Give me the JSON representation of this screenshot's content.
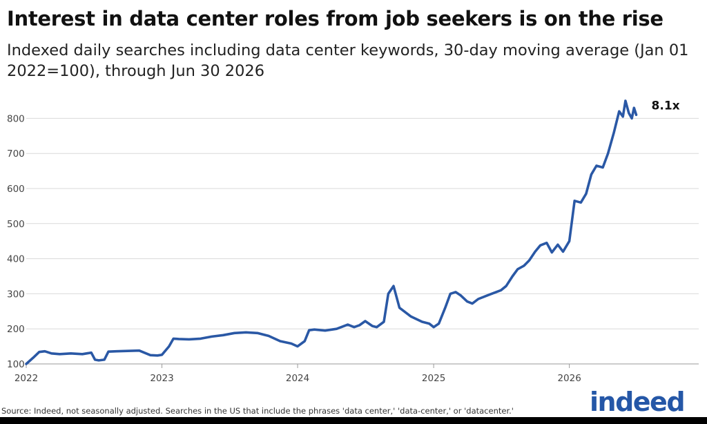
{
  "header": {
    "title": "Interest in data center roles from job seekers is on the rise",
    "subtitle": "Indexed daily searches including data center keywords, 30-day moving average (Jan 01 2022=100), through Jun 30 2026"
  },
  "footer": {
    "source": "Source: Indeed, not seasonally adjusted. Searches in the US that include the phrases 'data center,' 'data-center,' or 'datacenter.'",
    "logo": "indeed"
  },
  "colors": {
    "line": "#2a58a5",
    "grid": "#d9d9d9",
    "logo": "#2557a7"
  },
  "chart_data": {
    "type": "line",
    "title": "Interest in data center roles from job seekers is on the rise",
    "subtitle": "Indexed daily searches including data center keywords, 30-day moving average (Jan 01 2022=100), through Jun 30 2026",
    "xlabel": "",
    "ylabel": "",
    "ylim": [
      100,
      850
    ],
    "xlim": [
      "2022-01-01",
      "2026-12-15"
    ],
    "yticks": [
      100,
      200,
      300,
      400,
      500,
      600,
      700,
      800
    ],
    "xticks": [
      "2022",
      "2023",
      "2024",
      "2025",
      "2026"
    ],
    "grid": true,
    "annotation": {
      "date": "2026-06-30",
      "value": 810,
      "label": "8.1x"
    },
    "x": [
      "2022-01-01",
      "2022-01-20",
      "2022-02-05",
      "2022-02-20",
      "2022-03-10",
      "2022-04-01",
      "2022-05-01",
      "2022-06-01",
      "2022-06-25",
      "2022-07-05",
      "2022-07-15",
      "2022-07-30",
      "2022-08-10",
      "2022-09-01",
      "2022-10-01",
      "2022-11-01",
      "2022-12-01",
      "2022-12-20",
      "2023-01-01",
      "2023-01-20",
      "2023-02-01",
      "2023-02-15",
      "2023-03-15",
      "2023-04-15",
      "2023-05-15",
      "2023-06-15",
      "2023-07-15",
      "2023-08-15",
      "2023-09-15",
      "2023-10-15",
      "2023-11-15",
      "2023-12-15",
      "2024-01-01",
      "2024-01-20",
      "2024-02-01",
      "2024-02-15",
      "2024-03-15",
      "2024-04-15",
      "2024-05-15",
      "2024-06-01",
      "2024-06-15",
      "2024-07-01",
      "2024-07-20",
      "2024-08-01",
      "2024-08-20",
      "2024-09-01",
      "2024-09-15",
      "2024-10-01",
      "2024-11-01",
      "2024-12-01",
      "2024-12-20",
      "2025-01-01",
      "2025-01-15",
      "2025-02-01",
      "2025-02-15",
      "2025-03-01",
      "2025-03-15",
      "2025-04-01",
      "2025-04-15",
      "2025-05-01",
      "2025-06-01",
      "2025-07-01",
      "2025-07-15",
      "2025-08-01",
      "2025-08-15",
      "2025-09-01",
      "2025-09-15",
      "2025-10-01",
      "2025-10-15",
      "2025-11-01",
      "2025-11-15",
      "2025-12-01",
      "2025-12-15",
      "2026-01-01",
      "2026-01-15",
      "2026-02-01",
      "2026-02-15",
      "2026-03-01",
      "2026-03-15",
      "2026-04-01",
      "2026-04-15",
      "2026-05-01",
      "2026-05-15",
      "2026-05-25",
      "2026-06-01",
      "2026-06-10",
      "2026-06-18",
      "2026-06-24",
      "2026-06-30"
    ],
    "series": [
      {
        "values": [
          100,
          118,
          134,
          136,
          130,
          128,
          130,
          128,
          132,
          112,
          110,
          112,
          135,
          136,
          137,
          138,
          125,
          124,
          126,
          150,
          172,
          171,
          170,
          172,
          178,
          182,
          188,
          190,
          188,
          180,
          165,
          158,
          150,
          165,
          196,
          198,
          195,
          200,
          212,
          205,
          210,
          222,
          208,
          205,
          220,
          300,
          322,
          260,
          235,
          220,
          215,
          205,
          215,
          260,
          300,
          305,
          295,
          278,
          272,
          285,
          298,
          310,
          322,
          350,
          370,
          380,
          395,
          420,
          438,
          445,
          418,
          440,
          420,
          450,
          565,
          560,
          585,
          640,
          665,
          660,
          700,
          760,
          820,
          805,
          850,
          815,
          800,
          830,
          810
        ]
      }
    ]
  }
}
